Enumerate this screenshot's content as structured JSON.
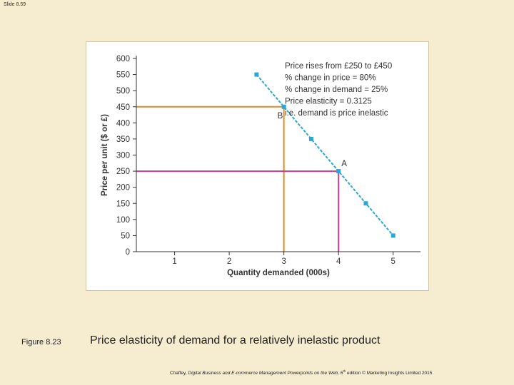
{
  "slide": {
    "number": "Slide 8.59"
  },
  "figure": {
    "label": "Figure 8.23",
    "caption": "Price elasticity of demand for a relatively inelastic product"
  },
  "source": {
    "authors": "Chaffey, ",
    "title": "Digital Business and E-commerce Management Powerpoints on the Web, ",
    "edition_num": "6",
    "edition_sup": "th",
    "rest": " edition © Marketing Insights Limited 2015"
  },
  "chart_data": {
    "type": "line",
    "xlabel": "Quantity demanded (000s)",
    "ylabel": "Price per unit ($ or £)",
    "xlim": [
      0.3,
      5.5
    ],
    "ylim": [
      0,
      600
    ],
    "x_ticks": [
      1,
      2,
      3,
      4,
      5
    ],
    "y_ticks": [
      0,
      50,
      100,
      150,
      200,
      250,
      300,
      350,
      400,
      450,
      500,
      550,
      600
    ],
    "grid": false,
    "series": [
      {
        "color": "#2aa7d4",
        "points": [
          {
            "x": 2.5,
            "y": 550
          },
          {
            "x": 3.0,
            "y": 450
          },
          {
            "x": 3.5,
            "y": 350
          },
          {
            "x": 4.0,
            "y": 250
          },
          {
            "x": 4.5,
            "y": 150
          },
          {
            "x": 5.0,
            "y": 50
          }
        ]
      }
    ],
    "reference_lines": [
      {
        "point": "B",
        "x": 3,
        "y": 450,
        "color": "#e08a22"
      },
      {
        "point": "A",
        "x": 4,
        "y": 250,
        "color": "#cc3c93"
      }
    ],
    "point_labels": [
      {
        "text": "B",
        "x": 3,
        "y": 450
      },
      {
        "text": "A",
        "x": 4,
        "y": 250
      }
    ],
    "annotation": [
      "Price rises from £250 to £450",
      "% change in price = 80%",
      "% change in demand = 25%",
      "Price elasticity = 0.3125",
      "i.e. demand is price inelastic"
    ]
  }
}
